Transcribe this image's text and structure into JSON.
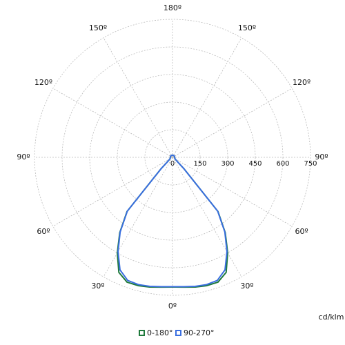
{
  "chart_data": {
    "type": "polar-line",
    "unit_label": "cd/klm",
    "x": [
      0,
      5,
      10,
      15,
      20,
      25,
      30,
      35,
      40,
      45,
      50,
      55,
      60,
      65,
      70,
      75,
      80,
      85,
      90,
      120,
      150,
      180
    ],
    "series": [
      {
        "name": "0-180°",
        "color": "#1f7a3c",
        "values": [
          705,
          708,
          716,
          722,
          722,
          690,
          600,
          500,
          385,
          90,
          30,
          20,
          16,
          14,
          13,
          12,
          12,
          12,
          12,
          12,
          12,
          12
        ]
      },
      {
        "name": "90-270°",
        "color": "#3a6fe0",
        "values": [
          703,
          706,
          712,
          716,
          712,
          675,
          592,
          496,
          382,
          88,
          30,
          20,
          16,
          14,
          13,
          12,
          12,
          12,
          12,
          12,
          12,
          12
        ]
      }
    ],
    "rlim": [
      0,
      750
    ],
    "rticks": [
      0,
      150,
      300,
      450,
      600,
      750
    ],
    "angle_ticks": [
      {
        "value": 0,
        "label": "0º"
      },
      {
        "value": 30,
        "label": "30º"
      },
      {
        "value": 60,
        "label": "60º"
      },
      {
        "value": 90,
        "label": "90º"
      },
      {
        "value": 120,
        "label": "120º"
      },
      {
        "value": 150,
        "label": "150º"
      },
      {
        "value": 180,
        "label": "180º"
      }
    ],
    "grid": true
  }
}
